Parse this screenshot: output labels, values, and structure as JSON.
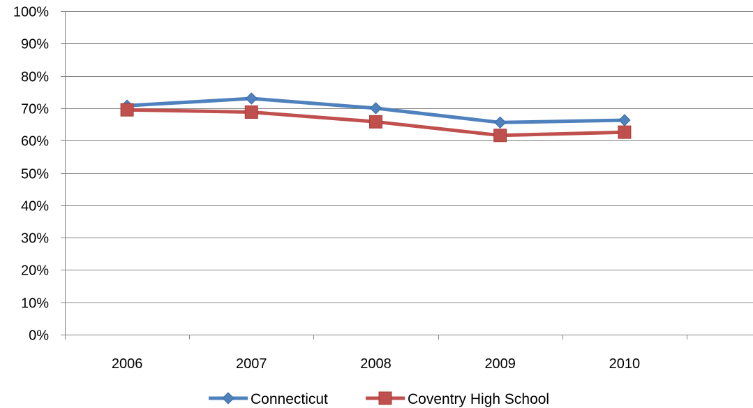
{
  "chart_data": {
    "type": "line",
    "title": "",
    "xlabel": "",
    "ylabel": "",
    "categories": [
      "2006",
      "2007",
      "2008",
      "2009",
      "2010"
    ],
    "ylim": [
      0,
      100
    ],
    "y_ticks": [
      0,
      10,
      20,
      30,
      40,
      50,
      60,
      70,
      80,
      90,
      100
    ],
    "y_tick_labels": [
      "0%",
      "10%",
      "20%",
      "30%",
      "40%",
      "50%",
      "60%",
      "70%",
      "80%",
      "90%",
      "100%"
    ],
    "grid": true,
    "legend_position": "bottom",
    "series": [
      {
        "name": "Connecticut",
        "values": [
          70.8,
          73.0,
          70.0,
          65.6,
          66.3
        ],
        "color": "#4F81BD",
        "marker": "diamond"
      },
      {
        "name": "Coventry High School",
        "values": [
          69.5,
          68.8,
          65.8,
          61.6,
          62.6
        ],
        "color": "#C0504D",
        "marker": "square"
      }
    ]
  }
}
